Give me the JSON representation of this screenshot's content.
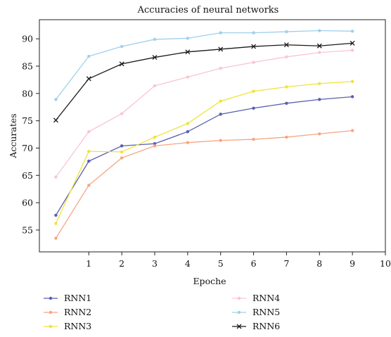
{
  "chart_data": {
    "type": "line",
    "title": "Accuracies of neural networks",
    "xlabel": "Epoche",
    "ylabel": "Accurates",
    "xlim": [
      -0.5,
      10
    ],
    "ylim": [
      51,
      93.5
    ],
    "xticks": [
      1,
      2,
      3,
      4,
      5,
      6,
      7,
      8,
      9,
      10
    ],
    "yticks": [
      55,
      60,
      65,
      70,
      75,
      80,
      85,
      90
    ],
    "x": [
      0,
      1,
      2,
      3,
      4,
      5,
      6,
      7,
      8,
      9
    ],
    "grid": false,
    "legend_position": "bottom",
    "series": [
      {
        "name": "RNN1",
        "color": "#5a5fb0",
        "marker": "dot",
        "values": [
          57.7,
          67.6,
          70.4,
          70.8,
          73.0,
          76.2,
          77.3,
          78.2,
          78.9,
          79.4
        ]
      },
      {
        "name": "RNN2",
        "color": "#f6a582",
        "marker": "dot",
        "values": [
          53.5,
          63.2,
          68.2,
          70.4,
          71.0,
          71.4,
          71.6,
          72.0,
          72.6,
          73.2
        ]
      },
      {
        "name": "RNN3",
        "color": "#f0e33a",
        "marker": "dot",
        "values": [
          56.2,
          69.4,
          69.3,
          72.0,
          74.5,
          78.6,
          80.4,
          81.2,
          81.8,
          82.2
        ]
      },
      {
        "name": "RNN4",
        "color": "#f9c6d0",
        "marker": "dot",
        "values": [
          64.7,
          73.0,
          76.3,
          81.4,
          83.0,
          84.6,
          85.7,
          86.7,
          87.5,
          87.9
        ]
      },
      {
        "name": "RNN5",
        "color": "#9fd0ec",
        "marker": "dot",
        "values": [
          78.9,
          86.8,
          88.6,
          89.9,
          90.1,
          91.1,
          91.1,
          91.3,
          91.5,
          91.4
        ]
      },
      {
        "name": "RNN6",
        "color": "#1a1a1a",
        "marker": "x",
        "values": [
          75.1,
          82.7,
          85.4,
          86.6,
          87.6,
          88.1,
          88.6,
          88.9,
          88.7,
          89.2
        ]
      }
    ]
  }
}
